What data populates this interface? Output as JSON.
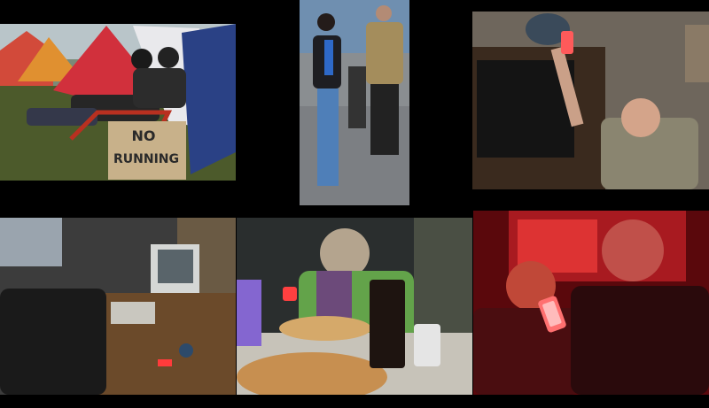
{
  "collage": {
    "background": "#000000",
    "photos": [
      {
        "id": "tents",
        "subject": "campers-in-chairs-by-tents",
        "sign": {
          "line1": "NO",
          "line2": "RUNNING"
        }
      },
      {
        "id": "street",
        "subject": "woman-on-phone-walking-street"
      },
      {
        "id": "living-room",
        "subject": "man-holding-up-phone"
      },
      {
        "id": "office",
        "subject": "desk-with-computer-and-phone"
      },
      {
        "id": "pizza",
        "subject": "woman-at-table-with-pizza-and-phone"
      },
      {
        "id": "red-room",
        "subject": "couple-looking-at-phone-in-red-light"
      }
    ],
    "colors": {
      "phone_accent": "#ff3b3b",
      "red_light": "#c8141c",
      "grass": "#4a5a2a"
    }
  }
}
